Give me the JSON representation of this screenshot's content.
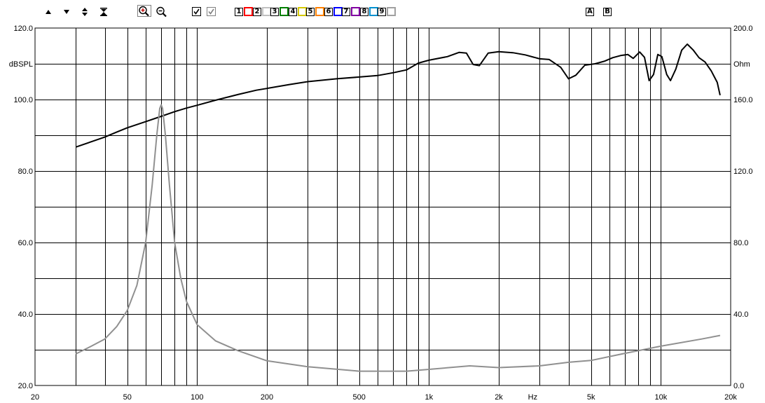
{
  "toolbar": {
    "arrows": [
      {
        "name": "scroll-up-icon",
        "glyph": "▲"
      },
      {
        "name": "scroll-down-icon",
        "glyph": "▼"
      },
      {
        "name": "expand-vertical-icon",
        "glyph": "◆"
      },
      {
        "name": "compress-vertical-icon",
        "glyph": "⧗"
      }
    ],
    "zoom": [
      {
        "name": "zoom-in-icon"
      },
      {
        "name": "zoom-out-icon"
      }
    ],
    "check_boxes": [
      {
        "name": "curve-checkbox-main",
        "checked": true,
        "color": "#000000"
      },
      {
        "name": "curve-checkbox-gray",
        "checked": true,
        "color": "#808080"
      }
    ],
    "curves": [
      {
        "label": "1",
        "color": "#ff0000"
      },
      {
        "label": "2",
        "color": "#c0c0c0"
      },
      {
        "label": "3",
        "color": "#008000"
      },
      {
        "label": "4",
        "color": "#d4c800"
      },
      {
        "label": "5",
        "color": "#ff8000"
      },
      {
        "label": "6",
        "color": "#0000ff"
      },
      {
        "label": "7",
        "color": "#8000a0"
      },
      {
        "label": "8",
        "color": "#0090d0"
      },
      {
        "label": "9",
        "color": "#a0a0a0"
      }
    ],
    "ab": [
      "A",
      "B"
    ]
  },
  "chart_data": {
    "type": "line",
    "x_scale": "log",
    "xlim": [
      20,
      20000
    ],
    "x_tick_labels": [
      {
        "v": 20,
        "t": "20"
      },
      {
        "v": 50,
        "t": "50"
      },
      {
        "v": 100,
        "t": "100"
      },
      {
        "v": 200,
        "t": "200"
      },
      {
        "v": 500,
        "t": "500"
      },
      {
        "v": 1000,
        "t": "1k"
      },
      {
        "v": 2000,
        "t": "2k"
      },
      {
        "v": 5000,
        "t": "5k"
      },
      {
        "v": 10000,
        "t": "10k"
      },
      {
        "v": 20000,
        "t": "20k"
      }
    ],
    "x_unit_label": {
      "v": 2800,
      "t": "Hz"
    },
    "x_gridlines": [
      30,
      40,
      50,
      60,
      70,
      80,
      90,
      100,
      200,
      300,
      400,
      500,
      600,
      700,
      800,
      900,
      1000,
      2000,
      3000,
      4000,
      5000,
      6000,
      7000,
      8000,
      9000,
      10000
    ],
    "y_left": {
      "lim": [
        20,
        120
      ],
      "label": "dBSPL",
      "label_at": 110,
      "ticks": [
        {
          "v": 120,
          "t": "120.0"
        },
        {
          "v": 100,
          "t": "100.0"
        },
        {
          "v": 80,
          "t": "80.0"
        },
        {
          "v": 60,
          "t": "60.0"
        },
        {
          "v": 40,
          "t": "40.0"
        },
        {
          "v": 20,
          "t": "20.0"
        }
      ]
    },
    "y_right": {
      "lim": [
        0,
        200
      ],
      "label": "Ohm",
      "label_at": 180,
      "ticks": [
        {
          "v": 200,
          "t": "200.0"
        },
        {
          "v": 160,
          "t": "160.0"
        },
        {
          "v": 120,
          "t": "120.0"
        },
        {
          "v": 80,
          "t": "80.0"
        },
        {
          "v": 40,
          "t": "40.0"
        },
        {
          "v": 0,
          "t": "0.0"
        }
      ]
    },
    "y_gridlines": [
      30,
      40,
      50,
      60,
      70,
      80,
      90,
      100,
      110
    ],
    "grid": true,
    "series": [
      {
        "axis": "left",
        "color": "#000000",
        "points": [
          [
            30,
            86.7
          ],
          [
            35,
            88.2
          ],
          [
            40,
            89.5
          ],
          [
            45,
            90.9
          ],
          [
            50,
            92.1
          ],
          [
            60,
            93.8
          ],
          [
            70,
            95.3
          ],
          [
            80,
            96.6
          ],
          [
            90,
            97.6
          ],
          [
            100,
            98.4
          ],
          [
            120,
            99.8
          ],
          [
            150,
            101.4
          ],
          [
            180,
            102.6
          ],
          [
            200,
            103.1
          ],
          [
            250,
            104.2
          ],
          [
            300,
            105.0
          ],
          [
            400,
            105.8
          ],
          [
            500,
            106.3
          ],
          [
            600,
            106.7
          ],
          [
            700,
            107.5
          ],
          [
            800,
            108.3
          ],
          [
            900,
            110.2
          ],
          [
            1000,
            111.0
          ],
          [
            1200,
            112.0
          ],
          [
            1350,
            113.2
          ],
          [
            1450,
            113.0
          ],
          [
            1550,
            109.8
          ],
          [
            1650,
            109.5
          ],
          [
            1800,
            113.0
          ],
          [
            2000,
            113.4
          ],
          [
            2300,
            113.1
          ],
          [
            2600,
            112.5
          ],
          [
            3000,
            111.4
          ],
          [
            3300,
            111.2
          ],
          [
            3700,
            109.0
          ],
          [
            4000,
            105.8
          ],
          [
            4300,
            106.8
          ],
          [
            4700,
            109.6
          ],
          [
            5200,
            110.0
          ],
          [
            5700,
            110.7
          ],
          [
            6200,
            111.7
          ],
          [
            6700,
            112.3
          ],
          [
            7200,
            112.6
          ],
          [
            7600,
            111.5
          ],
          [
            8100,
            113.3
          ],
          [
            8500,
            111.8
          ],
          [
            8900,
            105.3
          ],
          [
            9300,
            107.0
          ],
          [
            9700,
            112.6
          ],
          [
            10100,
            112.0
          ],
          [
            10600,
            107.0
          ],
          [
            11000,
            105.3
          ],
          [
            11600,
            108.5
          ],
          [
            12300,
            113.8
          ],
          [
            13000,
            115.5
          ],
          [
            13800,
            113.8
          ],
          [
            14600,
            111.7
          ],
          [
            15500,
            110.5
          ],
          [
            16500,
            108.0
          ],
          [
            17500,
            104.8
          ],
          [
            18000,
            101.2
          ]
        ]
      },
      {
        "axis": "right",
        "color": "#909090",
        "points": [
          [
            30,
            17.7
          ],
          [
            35,
            22
          ],
          [
            40,
            26
          ],
          [
            45,
            33
          ],
          [
            50,
            42
          ],
          [
            55,
            56
          ],
          [
            60,
            80
          ],
          [
            64,
            112
          ],
          [
            67,
            140
          ],
          [
            69,
            155
          ],
          [
            70,
            157
          ],
          [
            71,
            155
          ],
          [
            73,
            140
          ],
          [
            76,
            112
          ],
          [
            80,
            80
          ],
          [
            85,
            60
          ],
          [
            90,
            47
          ],
          [
            100,
            34
          ],
          [
            120,
            25
          ],
          [
            150,
            19.5
          ],
          [
            200,
            13.8
          ],
          [
            300,
            10.5
          ],
          [
            500,
            8
          ],
          [
            800,
            8
          ],
          [
            1000,
            9
          ],
          [
            1500,
            11
          ],
          [
            2000,
            10
          ],
          [
            3000,
            11
          ],
          [
            4000,
            13
          ],
          [
            5000,
            14
          ],
          [
            7000,
            18
          ],
          [
            10000,
            22
          ],
          [
            15000,
            26
          ],
          [
            18000,
            28
          ]
        ]
      }
    ]
  }
}
